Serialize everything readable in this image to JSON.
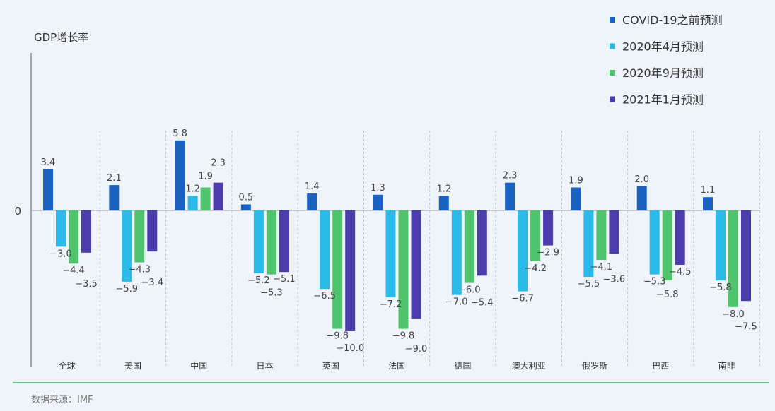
{
  "chart_data": {
    "type": "bar",
    "ylabel": "GDP增长率",
    "zero_tick": "0",
    "categories": [
      "全球",
      "美国",
      "中国",
      "日本",
      "英国",
      "法国",
      "德国",
      "澳大利亚",
      "俄罗斯",
      "巴西",
      "南非"
    ],
    "series": [
      {
        "name": "COVID-19之前预测",
        "color": "#1a62bf",
        "values": [
          3.4,
          2.1,
          5.8,
          0.5,
          1.4,
          1.3,
          1.2,
          2.3,
          1.9,
          2.0,
          1.1
        ]
      },
      {
        "name": "2020年4月预测",
        "color": "#2bbbe9",
        "values": [
          -3.0,
          -5.9,
          1.2,
          -5.2,
          -6.5,
          -7.2,
          -7.0,
          -6.7,
          -5.5,
          -5.3,
          -5.8
        ]
      },
      {
        "name": "2020年9月预测",
        "color": "#4fc46c",
        "values": [
          -4.4,
          -4.3,
          1.9,
          -5.3,
          -9.8,
          -9.8,
          -6.0,
          -4.2,
          -4.1,
          -5.8,
          -8.0
        ]
      },
      {
        "name": "2021年1月预测",
        "color": "#4b3cab",
        "values": [
          -3.5,
          -3.4,
          2.3,
          -5.1,
          -10.0,
          -9.0,
          -5.4,
          -2.9,
          -3.6,
          -4.5,
          -7.5
        ]
      }
    ],
    "legend": "top-right",
    "grid": false
  },
  "source": "数据来源：IMF"
}
